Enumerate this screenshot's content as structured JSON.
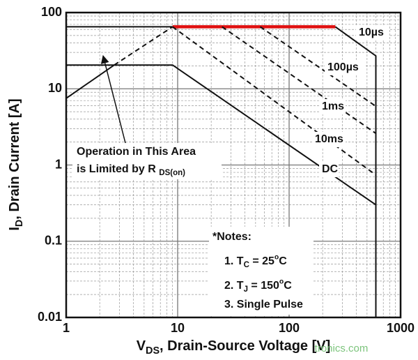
{
  "chart_data": {
    "type": "line",
    "x_label": [
      {
        "text": "V"
      },
      {
        "text": "DS",
        "shift": "sub"
      },
      {
        "text": ", Drain-Source Voltage [V]"
      }
    ],
    "y_label": [
      {
        "text": "I"
      },
      {
        "text": "D",
        "shift": "sub"
      },
      {
        "text": ", Drain Current [A]"
      }
    ],
    "log_x": true,
    "log_y": true,
    "grid": true,
    "xlim": [
      1,
      1000
    ],
    "xticks": [
      1,
      10,
      100,
      1000
    ],
    "ylim": [
      0.01,
      100
    ],
    "yticks": [
      0.01,
      0.1,
      1,
      10,
      100
    ],
    "series": [
      {
        "color": "#111111",
        "dash": false,
        "x": [
          1,
          2.7
        ],
        "values": [
          7.5,
          20.5
        ]
      },
      {
        "color": "#111111",
        "dash": true,
        "x": [
          2.7,
          9
        ],
        "values": [
          20.5,
          65
        ]
      },
      {
        "color": "#111111",
        "dash": false,
        "x": [
          1,
          9
        ],
        "values": [
          65,
          65
        ]
      },
      {
        "color": "#e01010",
        "dash": false,
        "x": [
          9,
          260
        ],
        "values": [
          65,
          65
        ]
      },
      {
        "name": "10µs",
        "color": "#111111",
        "dash": false,
        "x": [
          260,
          600,
          600
        ],
        "values": [
          65,
          27,
          0.01
        ]
      },
      {
        "name": "100µs",
        "color": "#111111",
        "dash": true,
        "x": [
          55,
          600
        ],
        "values": [
          65,
          5.9
        ]
      },
      {
        "name": "1ms",
        "color": "#111111",
        "dash": true,
        "x": [
          25,
          600
        ],
        "values": [
          65,
          2.6
        ]
      },
      {
        "name": "10ms",
        "color": "#111111",
        "dash": true,
        "x": [
          9,
          600
        ],
        "values": [
          65,
          0.74
        ]
      },
      {
        "name": "DC",
        "color": "#111111",
        "dash": false,
        "x": [
          1,
          9,
          600
        ],
        "values": [
          20.5,
          20.5,
          0.3
        ]
      }
    ],
    "annotation": [
      [
        {
          "text": "Operation in This Area"
        }
      ],
      [
        {
          "text": "is Limited by R "
        },
        {
          "text": "DS(on)",
          "shift": "sub"
        }
      ]
    ],
    "notes": [
      [
        {
          "text": "*Notes:"
        }
      ],
      [
        {
          "text": "1. T"
        },
        {
          "text": "C",
          "shift": "sub"
        },
        {
          "text": " = 25"
        },
        {
          "text": "o",
          "shift": "sup"
        },
        {
          "text": "C"
        }
      ],
      [
        {
          "text": "2. T"
        },
        {
          "text": "J",
          "shift": "sub"
        },
        {
          "text": " = 150"
        },
        {
          "text": "o",
          "shift": "sup"
        },
        {
          "text": "C"
        }
      ],
      [
        {
          "text": "3. Single Pulse"
        }
      ]
    ],
    "watermark": "tronics.com"
  }
}
